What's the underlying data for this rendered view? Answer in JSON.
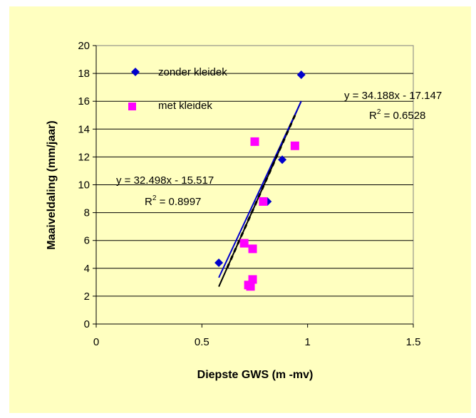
{
  "chart_data": {
    "type": "scatter",
    "xlabel": "Diepste GWS  (m -mv)",
    "ylabel": "Maaiveldaling (mm/jaar)",
    "xlim": [
      0,
      1.5
    ],
    "ylim": [
      0,
      20
    ],
    "x_ticks": [
      "0",
      "0.5",
      "1",
      "1.5"
    ],
    "y_ticks": [
      "0",
      "2",
      "4",
      "6",
      "8",
      "10",
      "12",
      "14",
      "16",
      "18",
      "20"
    ],
    "grid": "horizontal",
    "legend_position": "top-left",
    "series": [
      {
        "name": "zonder kleidek",
        "marker": "diamond",
        "color": "#0000cc",
        "points": [
          [
            0.58,
            4.4
          ],
          [
            0.81,
            8.8
          ],
          [
            0.88,
            11.8
          ],
          [
            0.97,
            17.9
          ]
        ],
        "trendline": {
          "slope": 32.498,
          "intercept": -15.517,
          "x_range": [
            0.58,
            0.97
          ],
          "color": "#0000cc",
          "style": "solid"
        }
      },
      {
        "name": "met kleidek",
        "marker": "square",
        "color": "#ff00ff",
        "points": [
          [
            0.7,
            5.8
          ],
          [
            0.72,
            2.8
          ],
          [
            0.73,
            2.7
          ],
          [
            0.74,
            5.4
          ],
          [
            0.74,
            3.2
          ],
          [
            0.75,
            13.1
          ],
          [
            0.79,
            8.8
          ],
          [
            0.94,
            12.8
          ]
        ],
        "trendline": {
          "slope": 34.188,
          "intercept": -17.147,
          "x_range": [
            0.62,
            0.94
          ],
          "color": "#000000",
          "style": "dotted"
        }
      }
    ],
    "extra_lines": [
      {
        "slope": 34.188,
        "intercept": -17.147,
        "x_range": [
          0.58,
          0.97
        ],
        "color": "#000000",
        "style": "solid"
      }
    ],
    "annotations": [
      {
        "lines": [
          "y = 34.188x - 17.147",
          "R",
          "2",
          " = 0.6528"
        ]
      },
      {
        "lines": [
          "y = 32.498x - 15.517",
          "R",
          "2",
          " = 0.8997"
        ]
      }
    ]
  }
}
